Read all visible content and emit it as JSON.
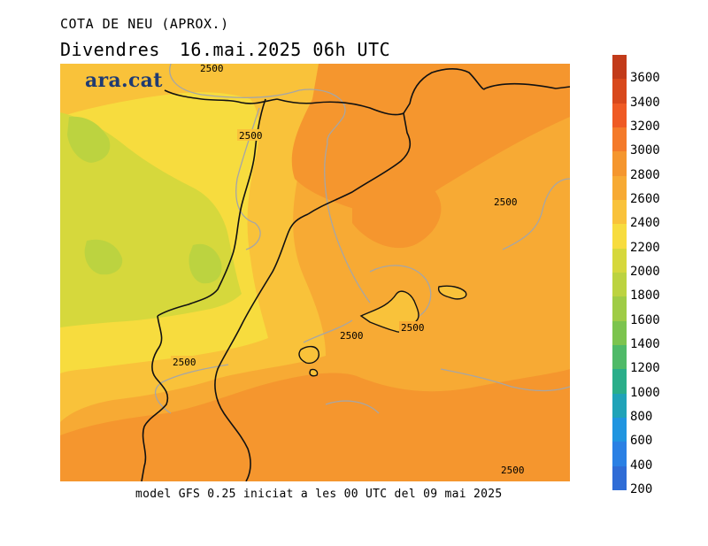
{
  "header": {
    "title": "COTA DE NEU (APROX.)",
    "day": "Divendres",
    "datetime": "16.mai.2025 06h UTC"
  },
  "map": {
    "logo": "ara.cat",
    "contour_labels": [
      "2500",
      "2500",
      "2500",
      "2500",
      "2500",
      "2500",
      "2500"
    ]
  },
  "footer": {
    "model_note": "model GFS 0.25 iniciat a les 00 UTC del 09 mai 2025"
  },
  "colorbar": {
    "labels": [
      "3600",
      "3400",
      "3200",
      "3000",
      "2800",
      "2600",
      "2400",
      "2200",
      "2000",
      "1800",
      "1600",
      "1400",
      "1200",
      "1000",
      "800",
      "600",
      "400",
      "200"
    ],
    "colors": [
      "#c23b1a",
      "#d8481c",
      "#ef5a24",
      "#f47a2a",
      "#f5962e",
      "#f7aa34",
      "#f9c23a",
      "#f7dc3e",
      "#d6d83c",
      "#bcd340",
      "#9fcc46",
      "#7cc44e",
      "#4fba68",
      "#2aae8a",
      "#20a3b8",
      "#2095e0",
      "#2a80e4",
      "#2f6cd6"
    ]
  }
}
